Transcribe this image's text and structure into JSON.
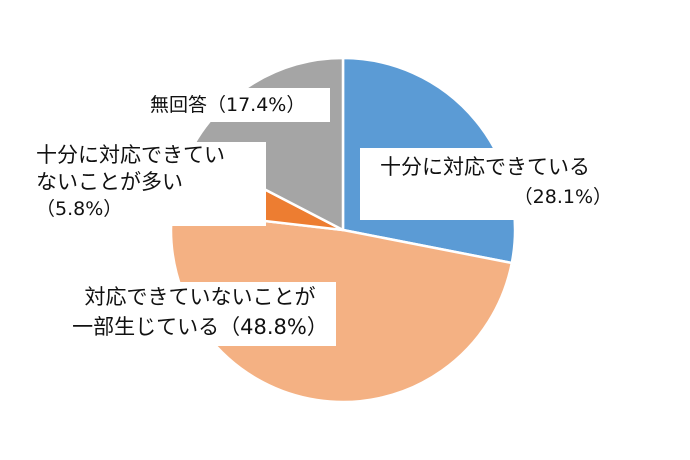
{
  "chart_data": {
    "type": "pie",
    "title": "",
    "start_angle_deg": 0,
    "direction": "clockwise",
    "slices": [
      {
        "label_lines": [
          "十分に対応できている",
          "（28.1%）"
        ],
        "value": 28.1,
        "color": "#5b9bd5"
      },
      {
        "label_lines": [
          "対応できていないことが",
          "一部生じている（48.8%）"
        ],
        "value": 48.8,
        "color": "#f4b183"
      },
      {
        "label_lines": [
          "十分に対応できてい",
          "ないことが多い",
          "（5.8%）"
        ],
        "value": 5.8,
        "color": "#ed7d31"
      },
      {
        "label_lines": [
          "無回答（17.4%）"
        ],
        "value": 17.4,
        "color": "#a5a5a5"
      }
    ]
  }
}
